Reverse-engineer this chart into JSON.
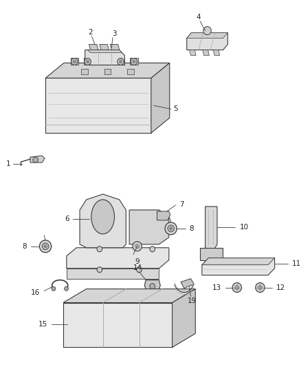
{
  "background_color": "#ffffff",
  "line_color": "#3a3a3a",
  "fill_light": "#f2f2f2",
  "fill_mid": "#e0e0e0",
  "fill_dark": "#cccccc",
  "fig_width": 4.38,
  "fig_height": 5.33,
  "dpi": 100
}
